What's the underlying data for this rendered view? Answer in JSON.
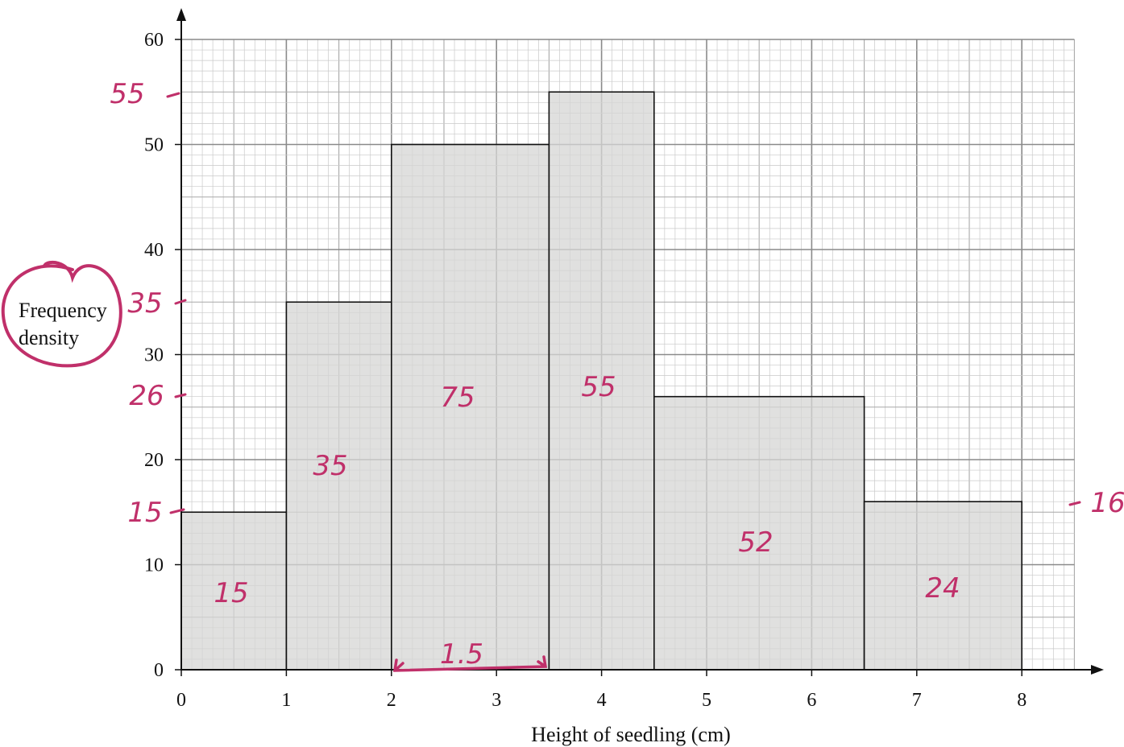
{
  "chart_data": {
    "type": "bar",
    "subtype": "histogram",
    "xlabel": "Height of seedling (cm)",
    "ylabel_lines": [
      "Frequency",
      "density"
    ],
    "xlim": [
      0,
      8.5
    ],
    "ylim": [
      0,
      60
    ],
    "x_ticks": [
      "0",
      "1",
      "2",
      "3",
      "4",
      "5",
      "6",
      "7",
      "8"
    ],
    "y_ticks": [
      "0",
      "10",
      "20",
      "30",
      "40",
      "50",
      "60"
    ],
    "grid": true,
    "bins": [
      {
        "start": 0,
        "end": 1,
        "density": 15
      },
      {
        "start": 1,
        "end": 2,
        "density": 35
      },
      {
        "start": 2,
        "end": 3.5,
        "density": 50
      },
      {
        "start": 3.5,
        "end": 4.5,
        "density": 55
      },
      {
        "start": 4.5,
        "end": 6.5,
        "density": 26
      },
      {
        "start": 6.5,
        "end": 8,
        "density": 16
      }
    ],
    "bar_fill": "#d6d6d4",
    "annotation_color": "#c0306a",
    "annotations": {
      "frequencies": [
        "15",
        "35",
        "75",
        "55",
        "52",
        "24"
      ],
      "axis_marks": [
        "55",
        "35",
        "26",
        "15",
        "16"
      ],
      "width_label": "1.5"
    }
  }
}
